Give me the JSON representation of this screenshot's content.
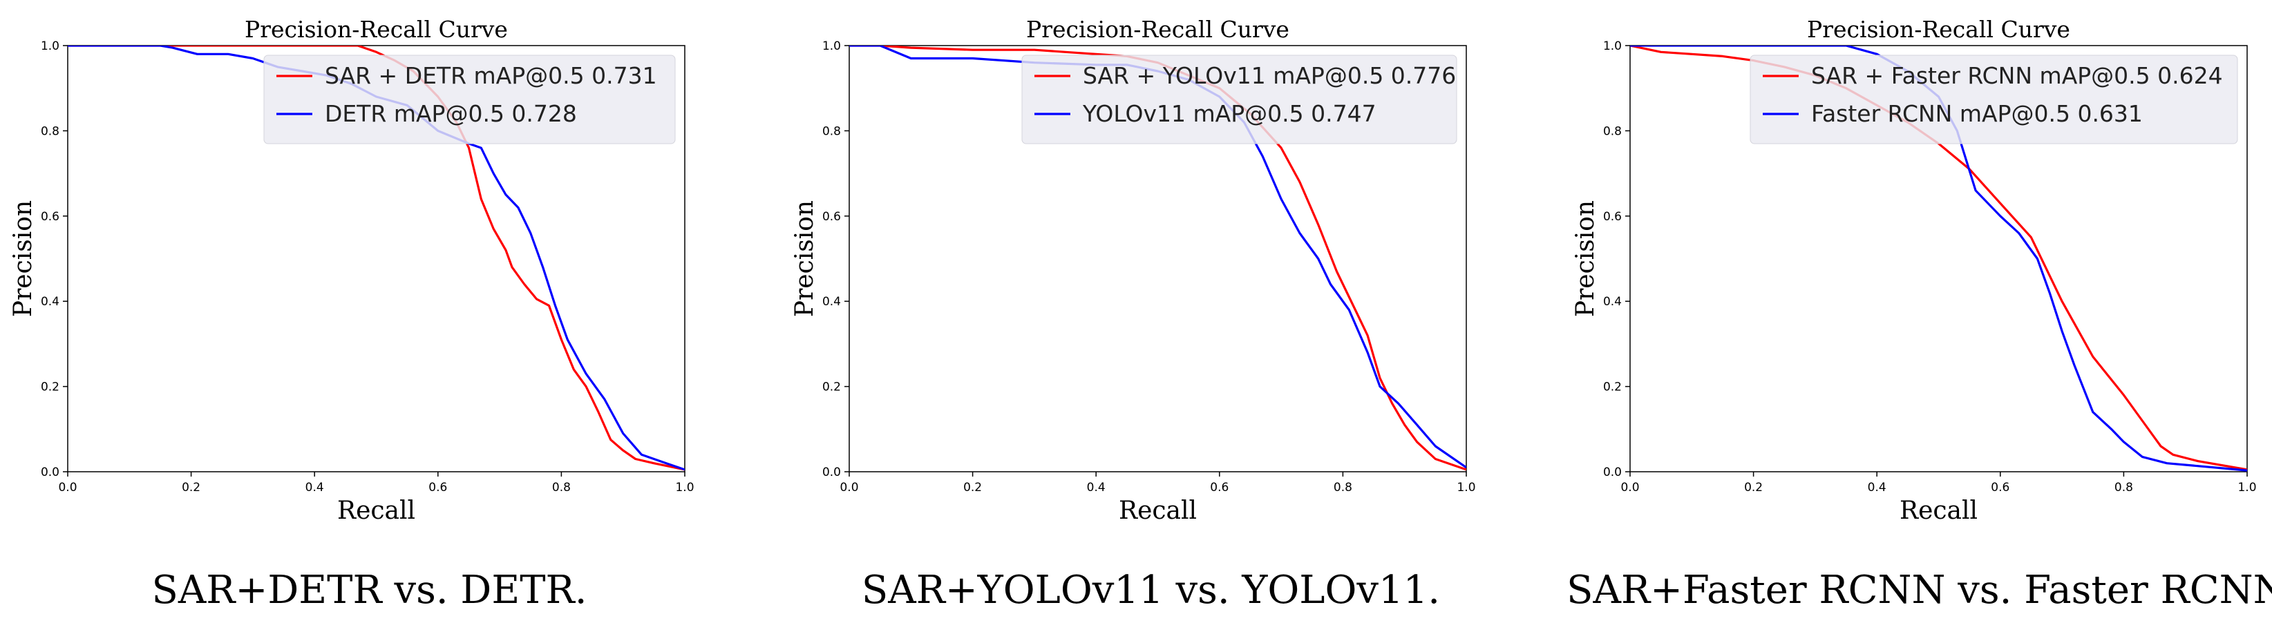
{
  "chart_data": [
    {
      "type": "line",
      "title": "Precision-Recall Curve",
      "xlabel": "Recall",
      "ylabel": "Precision",
      "xlim": [
        0,
        1
      ],
      "ylim": [
        0,
        1
      ],
      "xticks": [
        "0.0",
        "0.2",
        "0.4",
        "0.6",
        "0.8",
        "1.0"
      ],
      "yticks": [
        "0.0",
        "0.2",
        "0.4",
        "0.6",
        "0.8",
        "1.0"
      ],
      "grid": false,
      "legend_position": "top-right",
      "caption": "SAR+DETR vs. DETR.",
      "series": [
        {
          "name": "SAR + DETR mAP@0.5 0.731",
          "color": "#ff0000",
          "points": [
            [
              0,
              1
            ],
            [
              0.2,
              1
            ],
            [
              0.4,
              1
            ],
            [
              0.47,
              1
            ],
            [
              0.5,
              0.985
            ],
            [
              0.53,
              0.965
            ],
            [
              0.56,
              0.94
            ],
            [
              0.6,
              0.88
            ],
            [
              0.63,
              0.82
            ],
            [
              0.65,
              0.76
            ],
            [
              0.67,
              0.64
            ],
            [
              0.69,
              0.57
            ],
            [
              0.71,
              0.52
            ],
            [
              0.72,
              0.48
            ],
            [
              0.74,
              0.44
            ],
            [
              0.76,
              0.405
            ],
            [
              0.78,
              0.39
            ],
            [
              0.8,
              0.31
            ],
            [
              0.82,
              0.24
            ],
            [
              0.84,
              0.2
            ],
            [
              0.86,
              0.14
            ],
            [
              0.88,
              0.075
            ],
            [
              0.9,
              0.05
            ],
            [
              0.92,
              0.03
            ],
            [
              0.95,
              0.02
            ],
            [
              1,
              0.005
            ]
          ]
        },
        {
          "name": "DETR mAP@0.5 0.728",
          "color": "#0000ff",
          "points": [
            [
              0,
              1
            ],
            [
              0.15,
              1
            ],
            [
              0.17,
              0.995
            ],
            [
              0.21,
              0.98
            ],
            [
              0.26,
              0.98
            ],
            [
              0.3,
              0.97
            ],
            [
              0.34,
              0.95
            ],
            [
              0.38,
              0.94
            ],
            [
              0.42,
              0.93
            ],
            [
              0.46,
              0.91
            ],
            [
              0.5,
              0.88
            ],
            [
              0.55,
              0.86
            ],
            [
              0.6,
              0.8
            ],
            [
              0.65,
              0.77
            ],
            [
              0.67,
              0.76
            ],
            [
              0.69,
              0.7
            ],
            [
              0.71,
              0.65
            ],
            [
              0.73,
              0.62
            ],
            [
              0.75,
              0.56
            ],
            [
              0.77,
              0.48
            ],
            [
              0.79,
              0.39
            ],
            [
              0.81,
              0.31
            ],
            [
              0.84,
              0.23
            ],
            [
              0.87,
              0.17
            ],
            [
              0.9,
              0.09
            ],
            [
              0.93,
              0.04
            ],
            [
              0.97,
              0.02
            ],
            [
              1,
              0.005
            ]
          ]
        }
      ]
    },
    {
      "type": "line",
      "title": "Precision-Recall Curve",
      "xlabel": "Recall",
      "ylabel": "Precision",
      "xlim": [
        0,
        1
      ],
      "ylim": [
        0,
        1
      ],
      "xticks": [
        "0.0",
        "0.2",
        "0.4",
        "0.6",
        "0.8",
        "1.0"
      ],
      "yticks": [
        "0.0",
        "0.2",
        "0.4",
        "0.6",
        "0.8",
        "1.0"
      ],
      "grid": false,
      "legend_position": "top-right",
      "caption": "SAR+YOLOv11 vs. YOLOv11.",
      "series": [
        {
          "name": "SAR + YOLOv11 mAP@0.5 0.776",
          "color": "#ff0000",
          "points": [
            [
              0,
              1
            ],
            [
              0.05,
              1
            ],
            [
              0.1,
              0.995
            ],
            [
              0.2,
              0.99
            ],
            [
              0.3,
              0.99
            ],
            [
              0.35,
              0.985
            ],
            [
              0.4,
              0.98
            ],
            [
              0.45,
              0.975
            ],
            [
              0.5,
              0.96
            ],
            [
              0.55,
              0.93
            ],
            [
              0.6,
              0.9
            ],
            [
              0.65,
              0.84
            ],
            [
              0.7,
              0.76
            ],
            [
              0.73,
              0.68
            ],
            [
              0.76,
              0.58
            ],
            [
              0.79,
              0.47
            ],
            [
              0.82,
              0.38
            ],
            [
              0.84,
              0.32
            ],
            [
              0.86,
              0.22
            ],
            [
              0.88,
              0.16
            ],
            [
              0.9,
              0.11
            ],
            [
              0.92,
              0.07
            ],
            [
              0.95,
              0.03
            ],
            [
              1,
              0.005
            ]
          ]
        },
        {
          "name": "YOLOv11 mAP@0.5 0.747",
          "color": "#0000ff",
          "points": [
            [
              0,
              1
            ],
            [
              0.05,
              1
            ],
            [
              0.1,
              0.97
            ],
            [
              0.2,
              0.97
            ],
            [
              0.3,
              0.96
            ],
            [
              0.4,
              0.955
            ],
            [
              0.45,
              0.955
            ],
            [
              0.5,
              0.94
            ],
            [
              0.55,
              0.92
            ],
            [
              0.6,
              0.88
            ],
            [
              0.64,
              0.82
            ],
            [
              0.67,
              0.74
            ],
            [
              0.7,
              0.64
            ],
            [
              0.73,
              0.56
            ],
            [
              0.76,
              0.5
            ],
            [
              0.78,
              0.44
            ],
            [
              0.81,
              0.38
            ],
            [
              0.84,
              0.28
            ],
            [
              0.86,
              0.2
            ],
            [
              0.89,
              0.16
            ],
            [
              0.92,
              0.11
            ],
            [
              0.95,
              0.06
            ],
            [
              1,
              0.01
            ]
          ]
        }
      ]
    },
    {
      "type": "line",
      "title": "Precision-Recall Curve",
      "xlabel": "Recall",
      "ylabel": "Precision",
      "xlim": [
        0,
        1
      ],
      "ylim": [
        0,
        1
      ],
      "xticks": [
        "0.0",
        "0.2",
        "0.4",
        "0.6",
        "0.8",
        "1.0"
      ],
      "yticks": [
        "0.0",
        "0.2",
        "0.4",
        "0.6",
        "0.8",
        "1.0"
      ],
      "grid": false,
      "legend_position": "top-right",
      "caption": "SAR+Faster RCNN vs. Faster RCNN.",
      "series": [
        {
          "name": "SAR + Faster RCNN mAP@0.5 0.624",
          "color": "#ff0000",
          "points": [
            [
              0,
              1
            ],
            [
              0.05,
              0.985
            ],
            [
              0.1,
              0.98
            ],
            [
              0.15,
              0.975
            ],
            [
              0.2,
              0.965
            ],
            [
              0.25,
              0.95
            ],
            [
              0.3,
              0.93
            ],
            [
              0.35,
              0.9
            ],
            [
              0.4,
              0.86
            ],
            [
              0.45,
              0.82
            ],
            [
              0.5,
              0.77
            ],
            [
              0.55,
              0.71
            ],
            [
              0.6,
              0.63
            ],
            [
              0.65,
              0.55
            ],
            [
              0.7,
              0.4
            ],
            [
              0.75,
              0.27
            ],
            [
              0.8,
              0.18
            ],
            [
              0.83,
              0.12
            ],
            [
              0.86,
              0.06
            ],
            [
              0.88,
              0.04
            ],
            [
              0.92,
              0.025
            ],
            [
              1,
              0.005
            ]
          ]
        },
        {
          "name": "Faster RCNN mAP@0.5 0.631",
          "color": "#0000ff",
          "points": [
            [
              0,
              1
            ],
            [
              0.1,
              1
            ],
            [
              0.2,
              1
            ],
            [
              0.3,
              1
            ],
            [
              0.35,
              1
            ],
            [
              0.4,
              0.98
            ],
            [
              0.45,
              0.94
            ],
            [
              0.5,
              0.88
            ],
            [
              0.53,
              0.8
            ],
            [
              0.56,
              0.66
            ],
            [
              0.6,
              0.6
            ],
            [
              0.63,
              0.56
            ],
            [
              0.66,
              0.5
            ],
            [
              0.68,
              0.42
            ],
            [
              0.7,
              0.33
            ],
            [
              0.72,
              0.25
            ],
            [
              0.75,
              0.14
            ],
            [
              0.78,
              0.1
            ],
            [
              0.8,
              0.07
            ],
            [
              0.83,
              0.035
            ],
            [
              0.87,
              0.02
            ],
            [
              1,
              0.003
            ]
          ]
        }
      ]
    }
  ]
}
